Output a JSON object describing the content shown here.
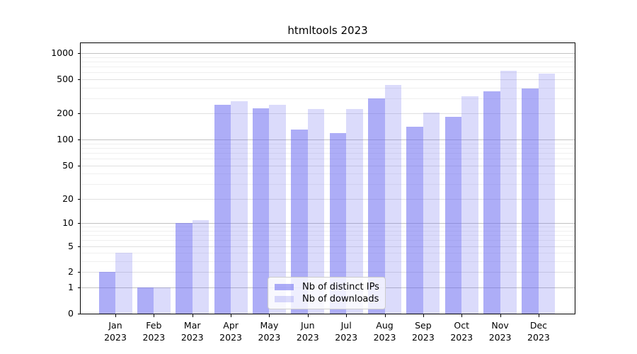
{
  "figure": {
    "background_color": "#ffffff",
    "title": "htmltools 2023"
  },
  "chart_data": {
    "type": "bar",
    "title": "htmltools 2023",
    "xlabel": "",
    "ylabel": "",
    "categories": [
      "Jan 2023",
      "Feb 2023",
      "Mar 2023",
      "Apr 2023",
      "May 2023",
      "Jun 2023",
      "Jul 2023",
      "Aug 2023",
      "Sep 2023",
      "Oct 2023",
      "Nov 2023",
      "Dec 2023"
    ],
    "series": [
      {
        "name": "Nb of distinct IPs",
        "color": "rgba(105,105,240,0.55)",
        "values": [
          2,
          1,
          10,
          255,
          230,
          130,
          120,
          300,
          140,
          185,
          360,
          390
        ]
      },
      {
        "name": "Nb of downloads",
        "color": "rgba(105,105,240,0.24)",
        "values": [
          4,
          1,
          11,
          280,
          255,
          225,
          225,
          430,
          205,
          320,
          630,
          575
        ]
      }
    ],
    "y_scale": "log1p",
    "ylim": [
      0,
      1300
    ],
    "y_ticks": [
      0,
      1,
      2,
      5,
      10,
      20,
      50,
      100,
      200,
      500,
      1000
    ],
    "y_minor_ticks": [
      3,
      4,
      6,
      7,
      8,
      9,
      30,
      40,
      60,
      70,
      80,
      90,
      300,
      400,
      600,
      700,
      800,
      900
    ],
    "grid": true,
    "grid_colors": {
      "decade": "#c2c2c2",
      "labeled": "#e0e0e0",
      "minor": "#efefef"
    },
    "legend_position": "bottom-center",
    "legend_entries": [
      "Nb of distinct IPs",
      "Nb of downloads"
    ]
  }
}
